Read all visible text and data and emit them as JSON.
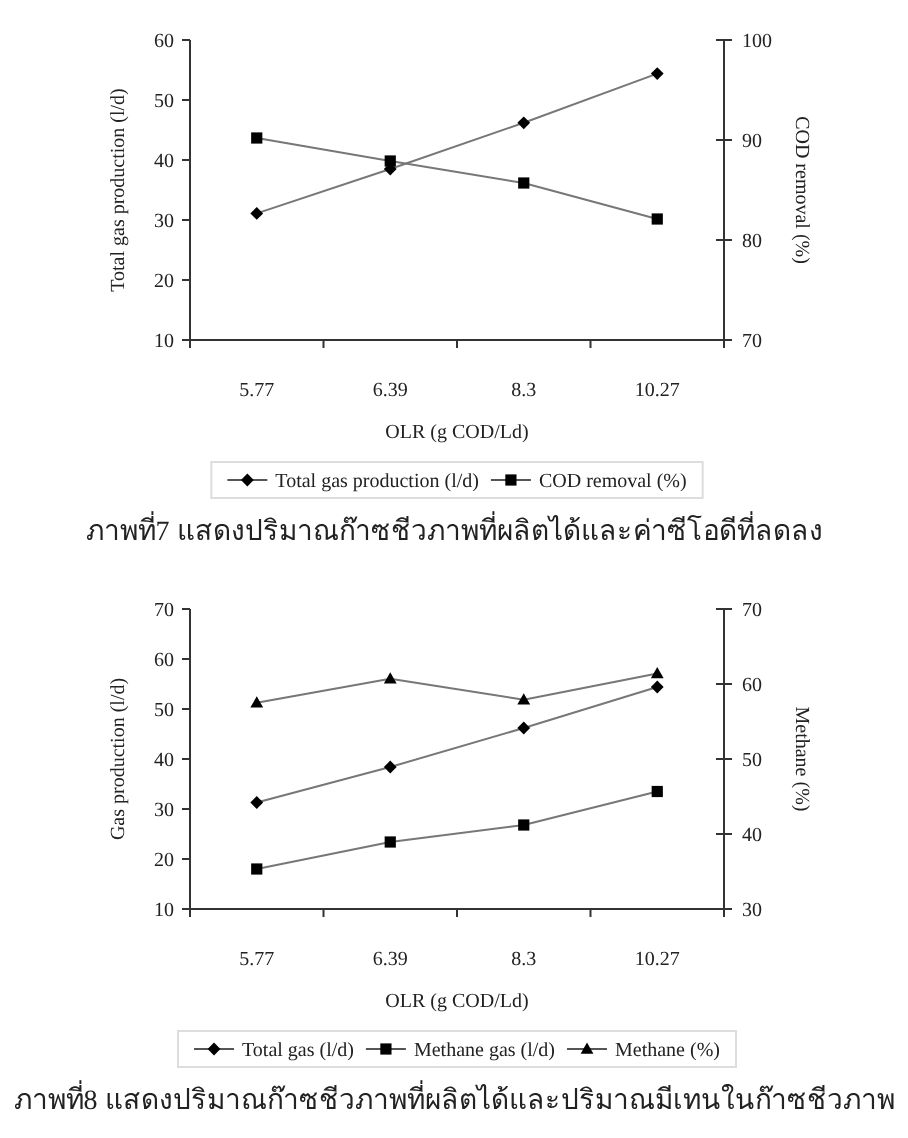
{
  "chart_data": [
    {
      "type": "line",
      "categories": [
        "5.77",
        "6.39",
        "8.3",
        "10.27"
      ],
      "xlabel": "OLR (g COD/Ld)",
      "ylabel": "Total gas production (l/d)",
      "y2label": "COD removal (%)",
      "ylim": [
        10,
        60
      ],
      "yticks": [
        10,
        20,
        30,
        40,
        50,
        60
      ],
      "y2lim": [
        70,
        100
      ],
      "y2ticks": [
        70,
        80,
        90,
        100
      ],
      "legend": "bottom",
      "grid": false,
      "series": [
        {
          "name": "Total gas production (l/d)",
          "color": "#000000",
          "marker": "diamond",
          "values": [
            31.1,
            38.5,
            46.2,
            54.4
          ]
        },
        {
          "name": "COD removal (%)",
          "color": "#000000",
          "marker": "square",
          "axis": "y2",
          "values": [
            90.2,
            87.9,
            85.7,
            82.1
          ]
        }
      ],
      "annotations": [
        "ภาพที่7 แสดงปริมาณก๊าซชีวภาพที่ผลิตได้และค่าซีโอดีที่ลดลง"
      ]
    },
    {
      "type": "line",
      "categories": [
        "5.77",
        "6.39",
        "8.3",
        "10.27"
      ],
      "xlabel": "OLR (g COD/Ld)",
      "ylabel": "Gas production (l/d)",
      "y2label": "Methane (%)",
      "ylim": [
        10,
        70
      ],
      "yticks": [
        10,
        20,
        30,
        40,
        50,
        60,
        70
      ],
      "y2lim": [
        30,
        70
      ],
      "y2ticks": [
        30,
        40,
        50,
        60,
        70
      ],
      "legend": "bottom",
      "grid": false,
      "series": [
        {
          "name": "Total gas (l/d)",
          "color": "#000000",
          "marker": "diamond",
          "values": [
            31.3,
            38.4,
            46.2,
            54.4
          ]
        },
        {
          "name": "Methane gas (l/d)",
          "color": "#000000",
          "marker": "square",
          "values": [
            18,
            23.4,
            26.8,
            33.5
          ]
        },
        {
          "name": "Methane (%)",
          "color": "#000000",
          "marker": "triangle",
          "axis": "y2",
          "values": [
            57.5,
            60.7,
            57.9,
            61.4
          ]
        }
      ],
      "annotations": [
        "ภาพที่8 แสดงปริมาณก๊าซชีวภาพที่ผลิตได้และปริมาณมีเทนในก๊าซชีวภาพ"
      ]
    }
  ]
}
